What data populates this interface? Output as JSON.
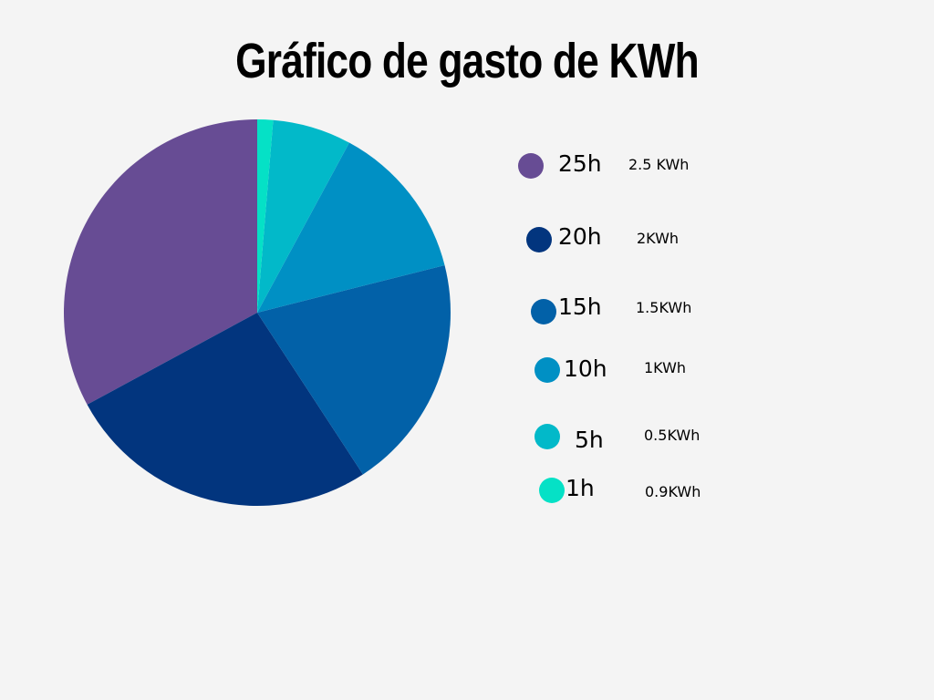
{
  "chart_data": {
    "type": "pie",
    "title": "Gráfico de gasto de KWh",
    "slices": [
      {
        "label": "25h",
        "value": 25,
        "energy": "2.5 KWh",
        "color": "#674c94"
      },
      {
        "label": "20h",
        "value": 20,
        "energy": "2KWh",
        "color": "#02357e"
      },
      {
        "label": "15h",
        "value": 15,
        "energy": "1.5KWh",
        "color": "#0261a8"
      },
      {
        "label": "10h",
        "value": 10,
        "energy": "1KWh",
        "color": "#0090c4"
      },
      {
        "label": "5h",
        "value": 5,
        "energy": "0.5KWh",
        "color": "#02b9c9"
      },
      {
        "label": "1h",
        "value": 1,
        "energy": "0.9KWh",
        "color": "#05e1c6"
      }
    ]
  }
}
